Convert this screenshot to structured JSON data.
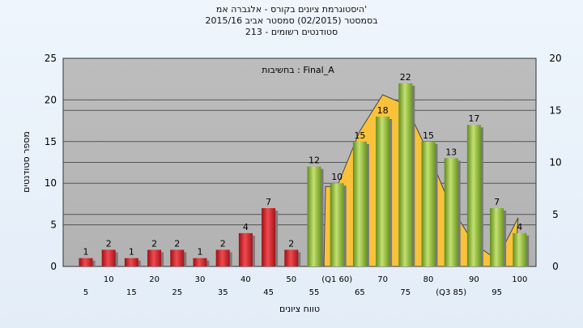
{
  "header": {
    "line1": "היסטוגרמת ציונים בקורס - אלגברה אמ'",
    "line2": "בסמסטר (02/2015) סמסטר אביב 2015/16",
    "line3": "213 - סטודנטים רשומים"
  },
  "chart_data": {
    "type": "bar",
    "xlabel": "טווח ציונים",
    "ylabel": "מספר סטודנטים",
    "ylim": [
      0,
      25
    ],
    "y2lim": [
      0,
      20
    ],
    "yticks": [
      0,
      5,
      10,
      15,
      20,
      25
    ],
    "y2ticks": [
      0,
      5,
      10,
      15,
      20
    ],
    "annotation": "בחשיבות : Final_A",
    "categories": [
      "5",
      "10",
      "15",
      "20",
      "25",
      "30",
      "35",
      "40",
      "45",
      "50",
      "55",
      "(Q1 60)",
      "65",
      "70",
      "75",
      "80",
      "(Q3 85)",
      "90",
      "95",
      "100"
    ],
    "values": [
      1,
      2,
      1,
      2,
      2,
      1,
      2,
      4,
      7,
      2,
      12,
      10,
      15,
      18,
      22,
      15,
      13,
      17,
      7,
      4
    ],
    "bar_colors": [
      "red",
      "red",
      "red",
      "red",
      "red",
      "red",
      "red",
      "red",
      "red",
      "red",
      "green",
      "green",
      "green",
      "green",
      "green",
      "green",
      "green",
      "green",
      "green",
      "green"
    ],
    "colors": {
      "red": "#d8232a",
      "green": "#9ccb3b",
      "curve": "#f9c23a"
    },
    "grid": true
  }
}
